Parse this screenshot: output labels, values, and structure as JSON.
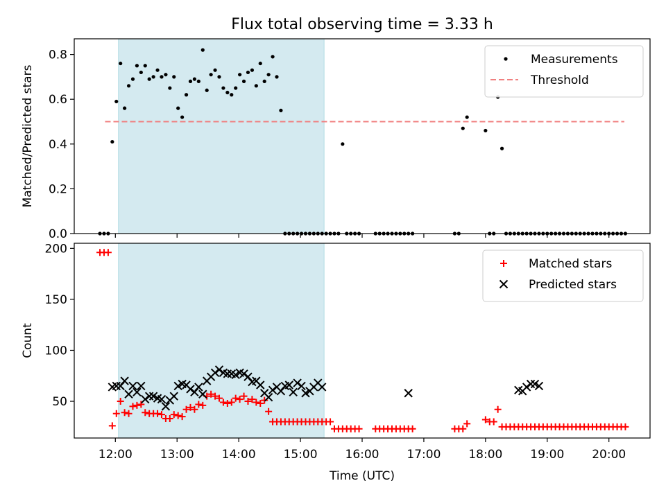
{
  "title": "Flux total observing time = 3.33 h",
  "chart_data": [
    {
      "type": "scatter",
      "ylabel": "Matched/Predicted stars",
      "xlabel": "",
      "xlim": [
        "11:20",
        "20:40"
      ],
      "ylim": [
        0,
        0.87
      ],
      "yticks": [
        0.0,
        0.2,
        0.4,
        0.6,
        0.8
      ],
      "ytick_labels": [
        "0.0",
        "0.2",
        "0.4",
        "0.6",
        "0.8"
      ],
      "grid": false,
      "legend_position": "top-right",
      "shaded_interval": {
        "start": "12:03",
        "end": "15:23",
        "color": "#d4eaf0"
      },
      "threshold": {
        "name": "Threshold",
        "value": 0.5,
        "from": "11:50",
        "to": "20:15",
        "color": "#f08080"
      },
      "series": [
        {
          "name": "Measurements",
          "color": "#000000",
          "x": [
            "11:45",
            "11:49",
            "11:53",
            "11:57",
            "12:01",
            "12:05",
            "12:09",
            "12:13",
            "12:17",
            "12:21",
            "12:25",
            "12:29",
            "12:33",
            "12:37",
            "12:41",
            "12:45",
            "12:49",
            "12:53",
            "12:57",
            "13:01",
            "13:05",
            "13:09",
            "13:13",
            "13:17",
            "13:21",
            "13:25",
            "13:29",
            "13:33",
            "13:37",
            "13:41",
            "13:45",
            "13:49",
            "13:53",
            "13:57",
            "14:01",
            "14:05",
            "14:09",
            "14:13",
            "14:17",
            "14:21",
            "14:25",
            "14:29",
            "14:33",
            "14:37",
            "14:41",
            "14:45",
            "14:49",
            "14:53",
            "14:57",
            "15:01",
            "15:05",
            "15:09",
            "15:13",
            "15:17",
            "15:21",
            "15:25",
            "15:29",
            "15:33",
            "15:37",
            "15:41",
            "15:45",
            "15:49",
            "15:53",
            "15:57",
            "16:13",
            "16:17",
            "16:21",
            "16:25",
            "16:29",
            "16:33",
            "16:37",
            "16:41",
            "16:45",
            "16:49",
            "17:30",
            "17:34",
            "17:38",
            "17:42",
            "18:00",
            "18:04",
            "18:08",
            "18:12",
            "18:16",
            "18:20",
            "18:24",
            "18:28",
            "18:32",
            "18:36",
            "18:40",
            "18:44",
            "18:48",
            "18:52",
            "18:56",
            "19:00",
            "19:04",
            "19:08",
            "19:12",
            "19:16",
            "19:20",
            "19:24",
            "19:28",
            "19:32",
            "19:36",
            "19:40",
            "19:44",
            "19:48",
            "19:52",
            "19:56",
            "20:00",
            "20:04",
            "20:08",
            "20:12",
            "20:16"
          ],
          "y": [
            0,
            0,
            0,
            0.41,
            0.59,
            0.76,
            0.56,
            0.66,
            0.69,
            0.75,
            0.72,
            0.75,
            0.69,
            0.7,
            0.73,
            0.7,
            0.71,
            0.65,
            0.7,
            0.56,
            0.52,
            0.62,
            0.68,
            0.69,
            0.68,
            0.82,
            0.64,
            0.71,
            0.73,
            0.7,
            0.65,
            0.63,
            0.62,
            0.65,
            0.71,
            0.68,
            0.72,
            0.73,
            0.66,
            0.76,
            0.68,
            0.71,
            0.79,
            0.7,
            0.55,
            0,
            0,
            0,
            0,
            0,
            0,
            0,
            0,
            0,
            0,
            0,
            0,
            0,
            0,
            0.4,
            0,
            0,
            0,
            0,
            0,
            0,
            0,
            0,
            0,
            0,
            0,
            0,
            0,
            0,
            0,
            0,
            0.47,
            0.52,
            0.46,
            0,
            0,
            0.61,
            0.38,
            0,
            0,
            0,
            0,
            0,
            0,
            0,
            0,
            0,
            0,
            0,
            0,
            0,
            0,
            0,
            0,
            0,
            0,
            0,
            0,
            0,
            0,
            0,
            0,
            0,
            0,
            0,
            0,
            0,
            0
          ]
        }
      ]
    },
    {
      "type": "scatter",
      "ylabel": "Count",
      "xlabel": "Time (UTC)",
      "xlim": [
        "11:20",
        "20:40"
      ],
      "ylim": [
        14,
        205
      ],
      "yticks": [
        50,
        100,
        150,
        200
      ],
      "ytick_labels": [
        "50",
        "100",
        "150",
        "200"
      ],
      "xticks": [
        "12:00",
        "13:00",
        "14:00",
        "15:00",
        "16:00",
        "17:00",
        "18:00",
        "19:00",
        "20:00"
      ],
      "grid": false,
      "legend_position": "top-right",
      "shaded_interval": {
        "start": "12:03",
        "end": "15:23",
        "color": "#d4eaf0"
      },
      "series": [
        {
          "name": "Matched stars",
          "marker": "plus",
          "color": "#ff0000",
          "x": [
            "11:45",
            "11:49",
            "11:53",
            "11:57",
            "12:01",
            "12:05",
            "12:09",
            "12:13",
            "12:17",
            "12:21",
            "12:25",
            "12:29",
            "12:33",
            "12:37",
            "12:41",
            "12:45",
            "12:49",
            "12:53",
            "12:57",
            "13:01",
            "13:05",
            "13:09",
            "13:13",
            "13:17",
            "13:21",
            "13:25",
            "13:29",
            "13:33",
            "13:37",
            "13:41",
            "13:45",
            "13:49",
            "13:53",
            "13:57",
            "14:01",
            "14:05",
            "14:09",
            "14:13",
            "14:17",
            "14:21",
            "14:25",
            "14:29",
            "14:33",
            "14:37",
            "14:41",
            "14:45",
            "14:49",
            "14:53",
            "14:57",
            "15:01",
            "15:05",
            "15:09",
            "15:13",
            "15:17",
            "15:21",
            "15:25",
            "15:29",
            "15:33",
            "15:37",
            "15:41",
            "15:45",
            "15:49",
            "15:53",
            "15:57",
            "16:13",
            "16:17",
            "16:21",
            "16:25",
            "16:29",
            "16:33",
            "16:37",
            "16:41",
            "16:45",
            "16:49",
            "17:30",
            "17:34",
            "17:38",
            "17:42",
            "18:00",
            "18:04",
            "18:08",
            "18:12",
            "18:16",
            "18:20",
            "18:24",
            "18:28",
            "18:32",
            "18:36",
            "18:40",
            "18:44",
            "18:48",
            "18:52",
            "18:56",
            "19:00",
            "19:04",
            "19:08",
            "19:12",
            "19:16",
            "19:20",
            "19:24",
            "19:28",
            "19:32",
            "19:36",
            "19:40",
            "19:44",
            "19:48",
            "19:52",
            "19:56",
            "20:00",
            "20:04",
            "20:08",
            "20:12",
            "20:16"
          ],
          "y": [
            196,
            196,
            196,
            26,
            38,
            50,
            39,
            38,
            45,
            46,
            47,
            39,
            38,
            38,
            38,
            37,
            33,
            33,
            37,
            36,
            35,
            42,
            44,
            42,
            47,
            46,
            55,
            57,
            55,
            53,
            49,
            48,
            49,
            53,
            52,
            55,
            50,
            52,
            49,
            48,
            51,
            40,
            30,
            30,
            30,
            30,
            30,
            30,
            30,
            30,
            30,
            30,
            30,
            30,
            30,
            30,
            30,
            23,
            23,
            23,
            23,
            23,
            23,
            23,
            23,
            23,
            23,
            23,
            23,
            23,
            23,
            23,
            23,
            23,
            23,
            23,
            23,
            28,
            32,
            30,
            30,
            42,
            25,
            25,
            25,
            25,
            25,
            25,
            25,
            25,
            25,
            25,
            25,
            25,
            25,
            25,
            25,
            25,
            25,
            25,
            25,
            25,
            25,
            25,
            25,
            25,
            25,
            25,
            25,
            25,
            25,
            25,
            25
          ]
        },
        {
          "name": "Predicted stars",
          "marker": "x",
          "color": "#000000",
          "x": [
            "11:57",
            "12:01",
            "12:05",
            "12:09",
            "12:13",
            "12:17",
            "12:21",
            "12:25",
            "12:29",
            "12:33",
            "12:37",
            "12:41",
            "12:45",
            "12:49",
            "12:53",
            "12:57",
            "13:01",
            "13:05",
            "13:09",
            "13:13",
            "13:17",
            "13:21",
            "13:25",
            "13:29",
            "13:33",
            "13:37",
            "13:41",
            "13:45",
            "13:49",
            "13:53",
            "13:57",
            "14:01",
            "14:05",
            "14:09",
            "14:13",
            "14:17",
            "14:21",
            "14:25",
            "14:29",
            "14:33",
            "14:37",
            "14:41",
            "14:45",
            "14:49",
            "14:53",
            "14:57",
            "15:01",
            "15:05",
            "15:09",
            "15:13",
            "15:17",
            "15:21",
            "16:45",
            "18:32",
            "18:36",
            "18:40",
            "18:44",
            "18:48",
            "18:52"
          ],
          "y": [
            64,
            65,
            65,
            70,
            57,
            65,
            59,
            65,
            52,
            55,
            55,
            53,
            52,
            45,
            51,
            55,
            65,
            67,
            66,
            62,
            59,
            64,
            57,
            70,
            74,
            78,
            81,
            78,
            77,
            77,
            76,
            78,
            77,
            74,
            69,
            70,
            66,
            58,
            54,
            61,
            64,
            60,
            65,
            66,
            59,
            68,
            65,
            58,
            60,
            64,
            68,
            64,
            58,
            61,
            60,
            64,
            67,
            67,
            65
          ]
        }
      ]
    }
  ]
}
